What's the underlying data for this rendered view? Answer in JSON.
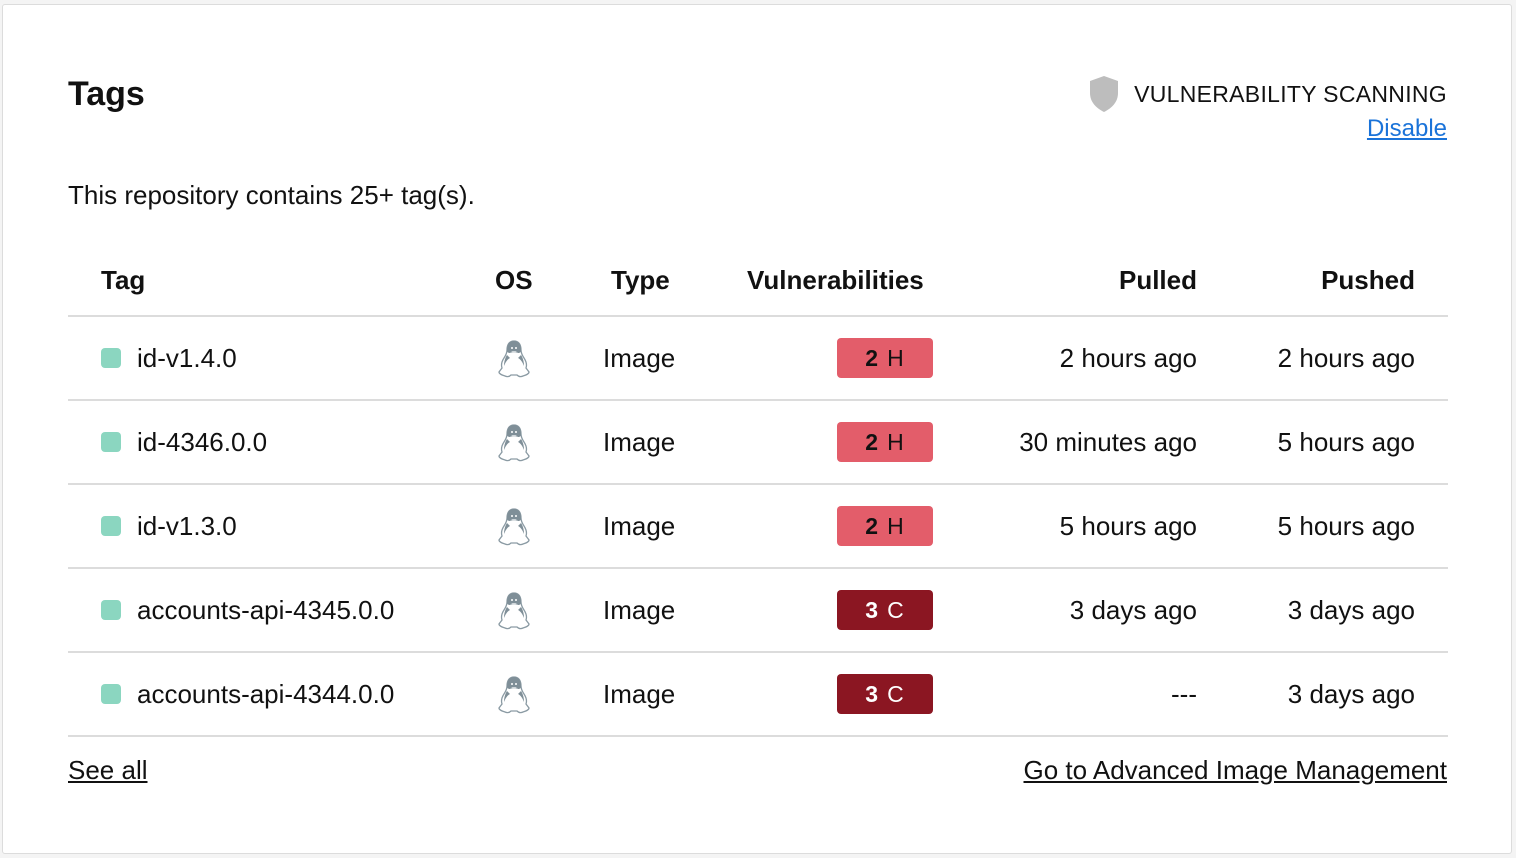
{
  "title": "Tags",
  "scanning": {
    "label": "VULNERABILITY SCANNING",
    "icon": "shield-icon",
    "action": "Disable"
  },
  "subtitle": "This repository contains 25+ tag(s).",
  "columns": {
    "tag": "Tag",
    "os": "OS",
    "type": "Type",
    "vulnerabilities": "Vulnerabilities",
    "pulled": "Pulled",
    "pushed": "Pushed"
  },
  "rows": [
    {
      "tag": "id-v1.4.0",
      "os": "linux",
      "type": "Image",
      "vuln_count": "2",
      "vuln_level": "H",
      "vuln_color": "#e35d6a",
      "vuln_text": "#111111",
      "pulled": "2 hours ago",
      "pushed": "2 hours ago"
    },
    {
      "tag": "id-4346.0.0",
      "os": "linux",
      "type": "Image",
      "vuln_count": "2",
      "vuln_level": "H",
      "vuln_color": "#e35d6a",
      "vuln_text": "#111111",
      "pulled": "30 minutes ago",
      "pushed": "5 hours ago"
    },
    {
      "tag": "id-v1.3.0",
      "os": "linux",
      "type": "Image",
      "vuln_count": "2",
      "vuln_level": "H",
      "vuln_color": "#e35d6a",
      "vuln_text": "#111111",
      "pulled": "5 hours ago",
      "pushed": "5 hours ago"
    },
    {
      "tag": "accounts-api-4345.0.0",
      "os": "linux",
      "type": "Image",
      "vuln_count": "3",
      "vuln_level": "C",
      "vuln_color": "#8b1622",
      "vuln_text": "#ffffff",
      "pulled": "3 days ago",
      "pushed": "3 days ago"
    },
    {
      "tag": "accounts-api-4344.0.0",
      "os": "linux",
      "type": "Image",
      "vuln_count": "3",
      "vuln_level": "C",
      "vuln_color": "#8b1622",
      "vuln_text": "#ffffff",
      "pulled": "---",
      "pushed": "3 days ago"
    }
  ],
  "footer": {
    "see_all": "See all",
    "advanced": "Go to Advanced Image Management"
  },
  "colors": {
    "status_dot": "#8bd6c0",
    "link": "#1a73d9"
  }
}
